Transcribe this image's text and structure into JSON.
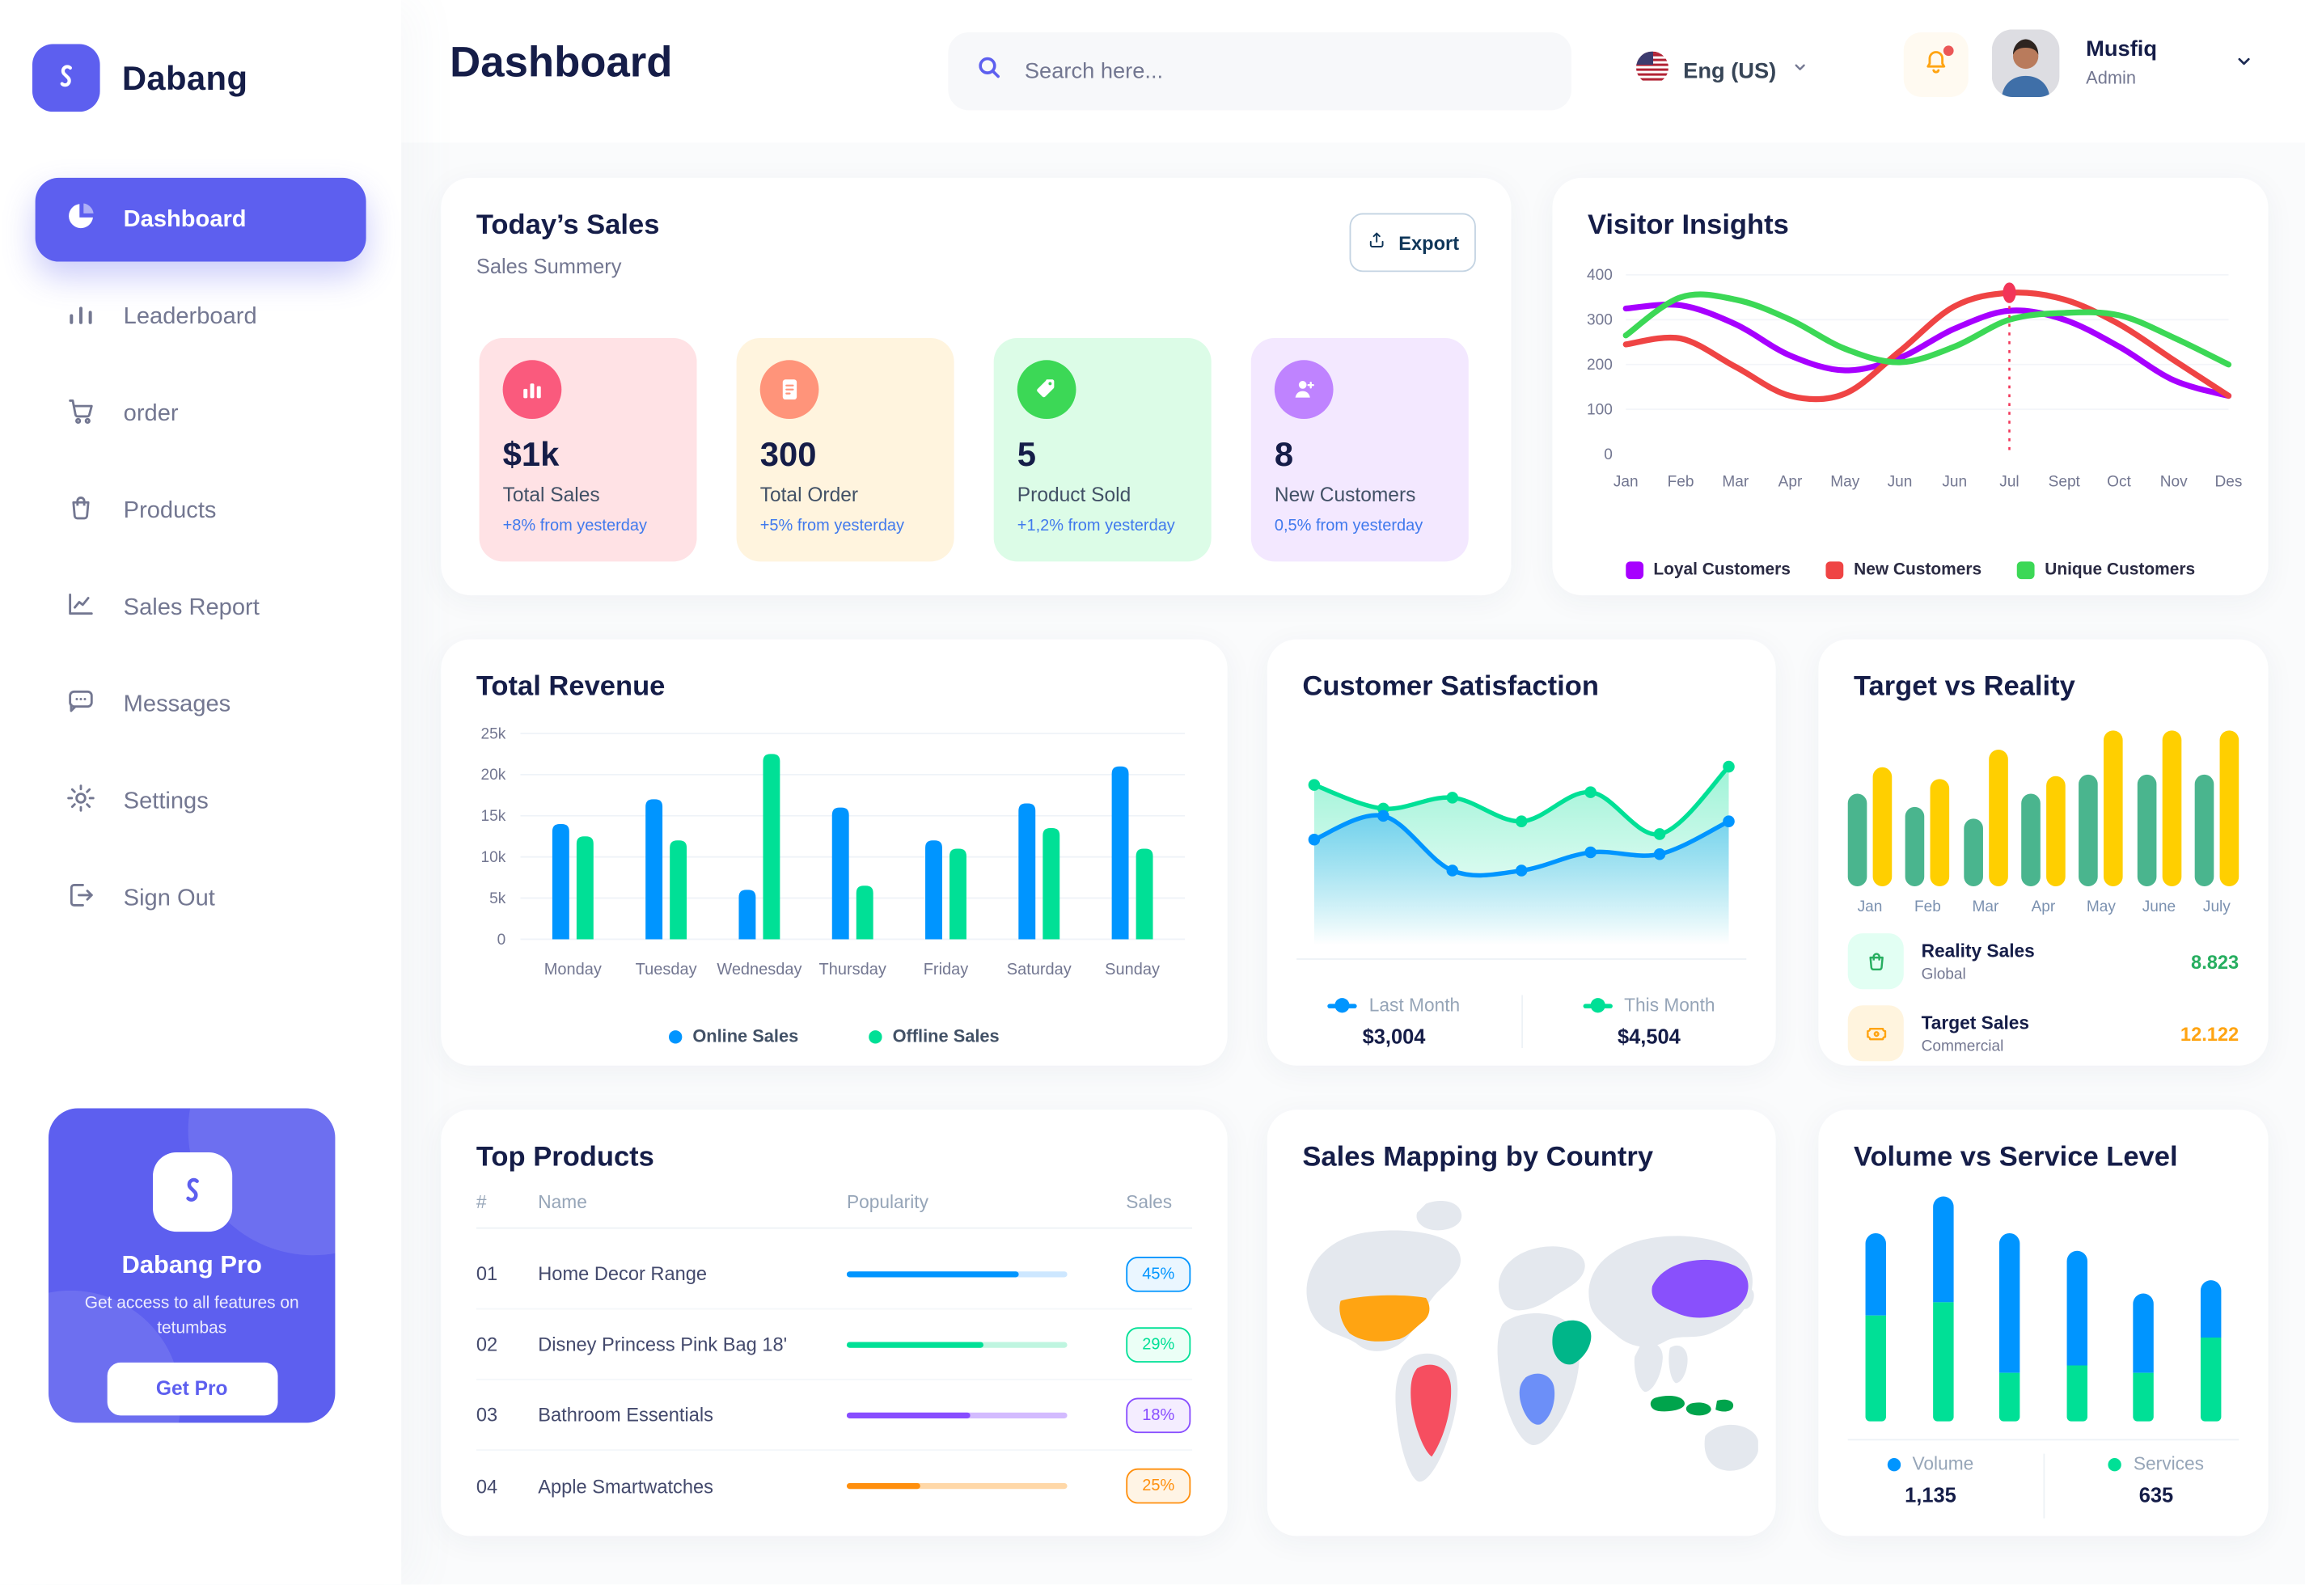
{
  "brand": {
    "name": "Dabang",
    "accent": "#5D5FEF"
  },
  "header": {
    "title": "Dashboard",
    "search_placeholder": "Search here...",
    "language": "Eng (US)",
    "user": {
      "name": "Musfiq",
      "role": "Admin"
    }
  },
  "sidebar": {
    "items": [
      {
        "label": "Dashboard",
        "icon": "pie-chart-icon",
        "active": true
      },
      {
        "label": "Leaderboard",
        "icon": "bar-chart-icon",
        "active": false
      },
      {
        "label": "order",
        "icon": "cart-icon",
        "active": false
      },
      {
        "label": "Products",
        "icon": "bag-icon",
        "active": false
      },
      {
        "label": "Sales Report",
        "icon": "line-chart-icon",
        "active": false
      },
      {
        "label": "Messages",
        "icon": "message-icon",
        "active": false
      },
      {
        "label": "Settings",
        "icon": "gear-icon",
        "active": false
      },
      {
        "label": "Sign Out",
        "icon": "sign-out-icon",
        "active": false
      }
    ]
  },
  "pro_card": {
    "title": "Dabang Pro",
    "subtitle": "Get access to all features on tetumbas",
    "cta": "Get Pro"
  },
  "todays_sales": {
    "title": "Today’s Sales",
    "subtitle": "Sales Summery",
    "export_label": "Export"
  },
  "sales_cards": [
    {
      "value": "$1k",
      "label": "Total Sales",
      "delta": "+8% from yesterday",
      "bg": "#FFE2E5",
      "icon_bg": "#FA5A7D",
      "icon": "bar-chart-icon"
    },
    {
      "value": "300",
      "label": "Total Order",
      "delta": "+5% from yesterday",
      "bg": "#FFF4DE",
      "icon_bg": "#FF947A",
      "icon": "receipt-icon"
    },
    {
      "value": "5",
      "label": "Product Sold",
      "delta": "+1,2% from yesterday",
      "bg": "#DCFCE7",
      "icon_bg": "#3CD856",
      "icon": "tag-icon"
    },
    {
      "value": "8",
      "label": "New Customers",
      "delta": "0,5% from yesterday",
      "bg": "#F3E8FF",
      "icon_bg": "#BF83FF",
      "icon": "user-plus-icon"
    }
  ],
  "chart_data": [
    {
      "id": "visitor_insights",
      "type": "line",
      "title": "Visitor Insights",
      "x": [
        "Jan",
        "Feb",
        "Mar",
        "Apr",
        "May",
        "Jun",
        "Jun",
        "Jul",
        "Sept",
        "Oct",
        "Nov",
        "Des"
      ],
      "ylim": [
        0,
        400
      ],
      "yticks": [
        0,
        100,
        200,
        300,
        400
      ],
      "grid": true,
      "legend_position": "bottom",
      "series": [
        {
          "name": "Loyal Customers",
          "color": "#A700FF",
          "values": [
            325,
            332,
            290,
            220,
            187,
            215,
            280,
            320,
            300,
            240,
            165,
            130
          ]
        },
        {
          "name": "New Customers",
          "color": "#EF4444",
          "values": [
            245,
            258,
            195,
            130,
            135,
            230,
            330,
            360,
            345,
            290,
            210,
            130
          ]
        },
        {
          "name": "Unique Customers",
          "color": "#3CD856",
          "values": [
            265,
            350,
            345,
            300,
            235,
            205,
            240,
            300,
            315,
            310,
            260,
            200
          ]
        }
      ],
      "marker": {
        "series": "New Customers",
        "x_index": 7,
        "x_label": "Jul",
        "value": 360,
        "color": "#F23558"
      }
    },
    {
      "id": "total_revenue",
      "type": "bar",
      "title": "Total Revenue",
      "categories": [
        "Monday",
        "Tuesday",
        "Wednesday",
        "Thursday",
        "Friday",
        "Saturday",
        "Sunday"
      ],
      "ylim": [
        0,
        25000
      ],
      "ytick_values": [
        0,
        5000,
        10000,
        15000,
        20000,
        25000
      ],
      "ytick_labels": [
        "0",
        "5k",
        "10k",
        "15k",
        "20k",
        "25k"
      ],
      "grid": true,
      "legend_position": "bottom",
      "series": [
        {
          "name": "Online Sales",
          "color": "#0095FF",
          "values": [
            14000,
            17000,
            6000,
            16000,
            12000,
            16500,
            21000
          ]
        },
        {
          "name": "Offline Sales",
          "color": "#00E096",
          "values": [
            12500,
            12000,
            22500,
            6500,
            11000,
            13500,
            11000
          ]
        }
      ]
    },
    {
      "id": "customer_satisfaction",
      "type": "area",
      "title": "Customer Satisfaction",
      "x": [
        1,
        2,
        3,
        4,
        5,
        6,
        7
      ],
      "ylim": [
        0,
        100
      ],
      "grid": false,
      "legend_position": "bottom",
      "series": [
        {
          "name": "Last Month",
          "color": "#0095FF",
          "total_label": "$3,004",
          "values": [
            45,
            58,
            28,
            28,
            38,
            37,
            55
          ]
        },
        {
          "name": "This Month",
          "color": "#00E096",
          "total_label": "$4,504",
          "values": [
            75,
            62,
            68,
            55,
            71,
            48,
            85
          ]
        }
      ]
    },
    {
      "id": "target_vs_reality",
      "type": "bar",
      "title": "Target vs Reality",
      "categories": [
        "Jan",
        "Feb",
        "Mar",
        "Apr",
        "May",
        "June",
        "July"
      ],
      "ylim": [
        0,
        10
      ],
      "series": [
        {
          "name": "Reality Sales",
          "color": "#4AB58E",
          "values": [
            5.8,
            5.0,
            4.3,
            5.8,
            7.0,
            7.0,
            7.0
          ]
        },
        {
          "name": "Target Sales",
          "color": "#FFCF00",
          "values": [
            7.5,
            6.8,
            8.6,
            6.9,
            9.8,
            9.8,
            9.8
          ]
        }
      ],
      "legend": [
        {
          "name": "Reality Sales",
          "sub": "Global",
          "value": "8.823",
          "value_color": "#27AE60",
          "icon": "bag-icon",
          "icon_bg": "#E2FFF3",
          "icon_color": "#27AE60"
        },
        {
          "name": "Target Sales",
          "sub": "Commercial",
          "value": "12.122",
          "value_color": "#FFA412",
          "icon": "ticket-icon",
          "icon_bg": "#FFF4DE",
          "icon_color": "#FFA412"
        }
      ]
    },
    {
      "id": "volume_vs_service",
      "type": "stacked-bar",
      "title": "Volume vs Service Level",
      "categories": [
        "1",
        "2",
        "3",
        "4",
        "5",
        "6"
      ],
      "legend_position": "bottom",
      "series": [
        {
          "name": "Volume",
          "color": "#0095FF",
          "total_label": "1,135",
          "values": [
            37,
            48,
            63,
            52,
            36,
            26
          ]
        },
        {
          "name": "Services",
          "color": "#00E096",
          "total_label": "635",
          "values": [
            48,
            54,
            22,
            25,
            22,
            38
          ]
        }
      ]
    }
  ],
  "top_products": {
    "title": "Top Products",
    "headers": [
      "#",
      "Name",
      "Popularity",
      "Sales"
    ],
    "rows": [
      {
        "num": "01",
        "name": "Home Decor Range",
        "popularity": 78,
        "sales": "45%",
        "color": "#0095FF",
        "track": "#CDE7FF",
        "badge_bg": "#EAF6FF"
      },
      {
        "num": "02",
        "name": "Disney Princess Pink Bag 18'",
        "popularity": 62,
        "sales": "29%",
        "color": "#00E096",
        "track": "#BFF5E0",
        "badge_bg": "#EBFFF6"
      },
      {
        "num": "03",
        "name": "Bathroom Essentials",
        "popularity": 56,
        "sales": "18%",
        "color": "#884DFF",
        "track": "#D3BBFF",
        "badge_bg": "#F4EDFF"
      },
      {
        "num": "04",
        "name": "Apple Smartwatches",
        "popularity": 33,
        "sales": "25%",
        "color": "#FF8F0D",
        "track": "#FFD8A8",
        "badge_bg": "#FFF4E5"
      }
    ]
  },
  "map": {
    "title": "Sales Mapping by Country",
    "countries": [
      {
        "key": "usa",
        "name": "United States",
        "color": "#FFA412"
      },
      {
        "key": "brazil",
        "name": "Brazil",
        "color": "#F64E60"
      },
      {
        "key": "saudi-arabia",
        "name": "Saudi Arabia",
        "color": "#00B689"
      },
      {
        "key": "dr-congo",
        "name": "DR Congo",
        "color": "#6C8FF8"
      },
      {
        "key": "china",
        "name": "China",
        "color": "#8950FC"
      },
      {
        "key": "indonesia",
        "name": "Indonesia",
        "color": "#00A44C"
      }
    ]
  }
}
